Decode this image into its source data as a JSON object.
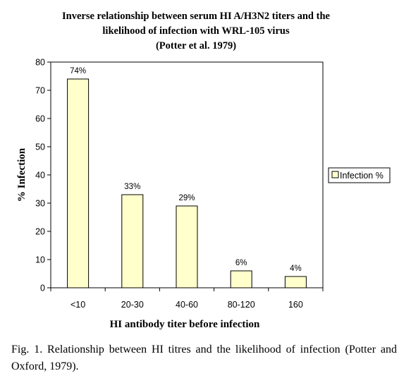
{
  "chart_data": {
    "type": "bar",
    "title_lines": [
      "Inverse relationship between serum HI A/H3N2 titers and the",
      "likelihood of infection with WRL-105 virus",
      "(Potter et al. 1979)"
    ],
    "xlabel": "HI antibody titer before infection",
    "ylabel": "% Infection",
    "categories": [
      "<10",
      "20-30",
      "40-60",
      "80-120",
      "160"
    ],
    "series": [
      {
        "name": "Infection %",
        "values": [
          74,
          33,
          29,
          6,
          4
        ],
        "data_labels": [
          "74%",
          "33%",
          "29%",
          "6%",
          "4%"
        ]
      }
    ],
    "ylim": [
      0,
      80
    ],
    "yticks": [
      0,
      10,
      20,
      30,
      40,
      50,
      60,
      70,
      80
    ],
    "grid": false,
    "legend": "right",
    "colors": {
      "bar_fill": "#ffffcc",
      "bar_stroke": "#000000"
    }
  },
  "caption": "Fig. 1. Relationship between HI titres and the likelihood of infection (Potter and Oxford, 1979)."
}
